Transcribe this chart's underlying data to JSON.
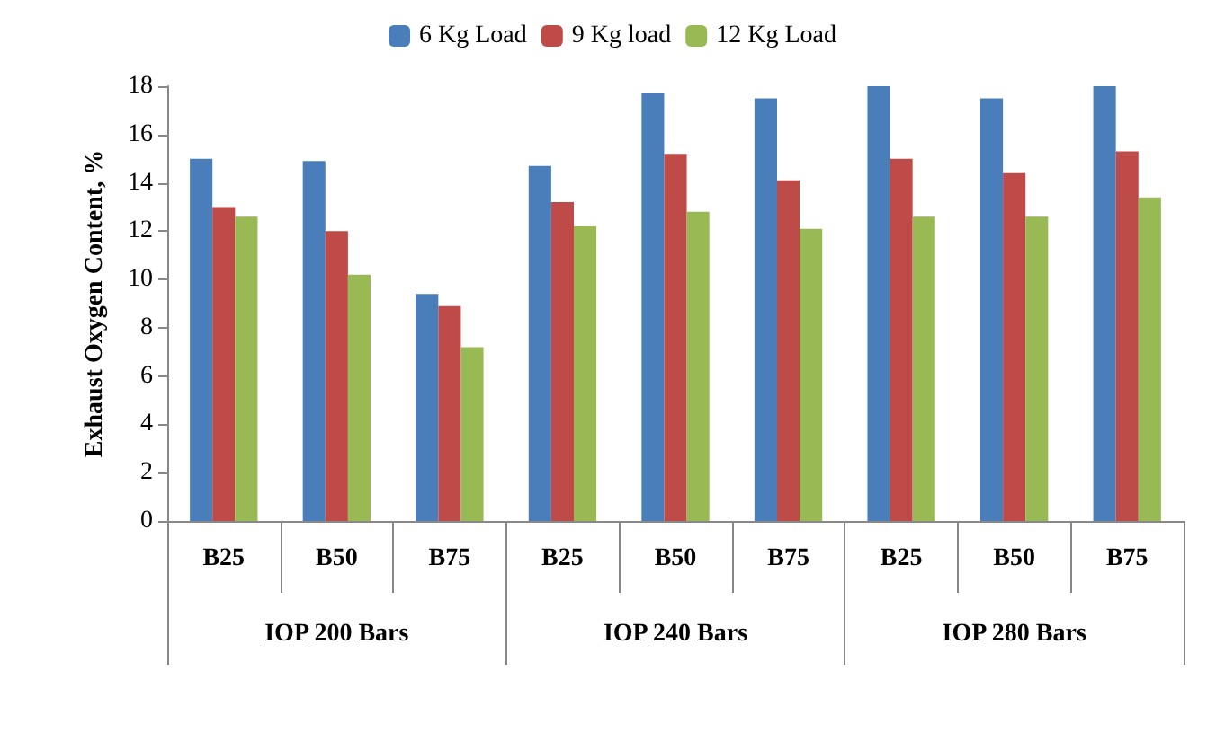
{
  "chart_data": {
    "type": "bar",
    "ylabel": "Exhaust Oxygen Content, %",
    "categories": [
      "B25",
      "B50",
      "B75",
      "B25",
      "B50",
      "B75",
      "B25",
      "B50",
      "B75"
    ],
    "series": [
      {
        "name": "6 Kg Load",
        "color": "#4a7ebb",
        "values": [
          15,
          14.9,
          9.4,
          14.7,
          17.7,
          17.5,
          18,
          17.5,
          18
        ]
      },
      {
        "name": "9 Kg load",
        "color": "#be4b48",
        "values": [
          13,
          12,
          8.9,
          13.2,
          15.2,
          14.1,
          15,
          14.4,
          15.3
        ]
      },
      {
        "name": "12 Kg Load",
        "color": "#98b954",
        "values": [
          12.6,
          10.2,
          7.2,
          12.2,
          12.8,
          12.1,
          12.6,
          12.6,
          13.4
        ]
      }
    ],
    "annotations": [
      "IOP 200 Bars",
      "IOP 240 Bars",
      "IOP 280 Bars"
    ],
    "ylim": [
      0,
      18
    ],
    "yticks": [
      0,
      2,
      4,
      6,
      8,
      10,
      12,
      14,
      16,
      18
    ],
    "grid": false,
    "legend": "top"
  }
}
